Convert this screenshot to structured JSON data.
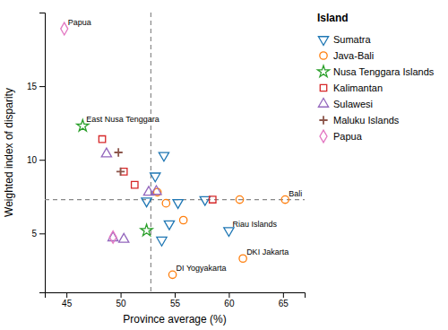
{
  "chart_data": {
    "type": "scatter",
    "xlabel": "Province average (%)",
    "ylabel": "Weighted index of disparity",
    "xlim": [
      43,
      67
    ],
    "ylim": [
      1,
      20
    ],
    "xticks": [
      45,
      50,
      55,
      60,
      65
    ],
    "yticks": [
      5,
      10,
      15
    ],
    "legend": "right",
    "legend_title": "Island",
    "reference_lines": [
      {
        "axis": "x",
        "value": 52.8,
        "line_style": "dashed"
      },
      {
        "axis": "y",
        "value": 7.3,
        "line_style": "dashed"
      }
    ],
    "series": [
      {
        "name": "Sumatra",
        "marker": "triangle-down",
        "x": [
          52.4,
          53.2,
          54.0,
          55.3,
          54.5,
          53.8,
          57.8,
          60.0
        ],
        "values": [
          7.2,
          8.9,
          10.3,
          7.1,
          5.65,
          4.55,
          7.3,
          5.2
        ],
        "labels": [
          null,
          null,
          null,
          null,
          null,
          null,
          null,
          "Riau Islands"
        ]
      },
      {
        "name": "Java-Bali",
        "marker": "circle",
        "x": [
          53.4,
          54.2,
          55.8,
          61.0,
          65.2,
          61.3,
          54.8
        ],
        "values": [
          7.8,
          7.05,
          5.9,
          7.3,
          7.3,
          3.3,
          2.2
        ],
        "labels": [
          null,
          null,
          null,
          null,
          "Bali",
          "DKI Jakarta",
          "DI Yogyakarta"
        ]
      },
      {
        "name": "Nusa Tenggara Islands",
        "marker": "star",
        "x": [
          46.5,
          52.4
        ],
        "values": [
          12.3,
          5.2
        ],
        "labels": [
          "East Nusa Tenggara",
          null
        ]
      },
      {
        "name": "Kalimantan",
        "marker": "square",
        "x": [
          48.3,
          50.3,
          51.3,
          58.5
        ],
        "values": [
          11.4,
          9.2,
          8.3,
          7.3
        ]
      },
      {
        "name": "Sulawesi",
        "marker": "triangle-up",
        "x": [
          48.7,
          52.6,
          53.3,
          49.3,
          50.3
        ],
        "values": [
          10.4,
          7.8,
          7.85,
          4.7,
          4.6
        ]
      },
      {
        "name": "Maluku Islands",
        "marker": "plus",
        "x": [
          49.8,
          50.0
        ],
        "values": [
          10.5,
          9.2
        ]
      },
      {
        "name": "Papua",
        "marker": "diamond",
        "x": [
          44.8,
          49.3
        ],
        "values": [
          18.9,
          4.75
        ],
        "labels": [
          "Papua",
          null
        ]
      }
    ]
  }
}
